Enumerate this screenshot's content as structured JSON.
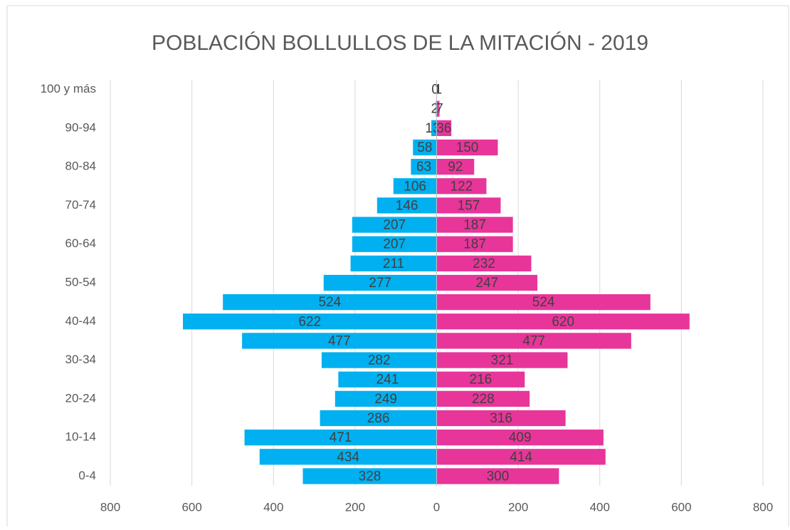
{
  "chart_data": {
    "type": "pyramid",
    "title": "POBLACIÓN BOLLULLOS DE LA MITACIÓN - 2019",
    "categories": [
      "0-4",
      null,
      "10-14",
      null,
      "20-24",
      null,
      "30-34",
      null,
      "40-44",
      null,
      "50-54",
      null,
      "60-64",
      null,
      "70-74",
      null,
      "80-84",
      null,
      "90-94",
      null,
      "100 y más"
    ],
    "series": [
      {
        "color": "#00b0f0",
        "side": "left",
        "values": [
          328,
          434,
          471,
          286,
          249,
          241,
          282,
          477,
          622,
          524,
          277,
          211,
          207,
          207,
          146,
          106,
          63,
          58,
          13,
          2,
          0
        ]
      },
      {
        "color": "#e8359a",
        "side": "right",
        "values": [
          300,
          414,
          409,
          316,
          228,
          216,
          321,
          477,
          620,
          524,
          247,
          232,
          187,
          187,
          157,
          122,
          92,
          150,
          36,
          7,
          1
        ]
      }
    ],
    "xlim": [
      -800,
      800
    ],
    "xticks": [
      {
        "value": -800,
        "label": "800"
      },
      {
        "value": -600,
        "label": "600"
      },
      {
        "value": -400,
        "label": "400"
      },
      {
        "value": -200,
        "label": "200"
      },
      0,
      200,
      400,
      600,
      800
    ],
    "grid": true
  }
}
